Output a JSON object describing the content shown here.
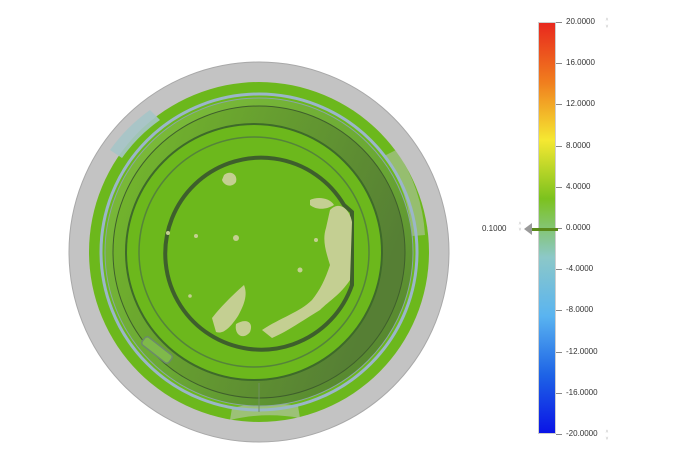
{
  "colorbar": {
    "labels": [
      "20.0000",
      "16.0000",
      "12.0000",
      "8.0000",
      "4.0000",
      "0.0000",
      "-4.0000",
      "-8.0000",
      "-12.0000",
      "-16.0000",
      "-20.0000"
    ],
    "max_spin_up": "˄",
    "max_spin_down": "˅",
    "min_spin_up": "˄",
    "min_spin_down": "˅",
    "colors": {
      "top": "#e8281e",
      "orange": "#f07d1e",
      "yellow": "#f5e832",
      "green": "#7cc21e",
      "teal": "#8cc8c8",
      "lightblue": "#5ab4f0",
      "blue": "#1e64e6",
      "bottom": "#0a14e6"
    }
  },
  "tolerance": {
    "value": "0.1000",
    "spin_up": "˄",
    "spin_down": "˅"
  },
  "model": {
    "colors": {
      "outer_disk": "#c4c4c4",
      "green": "#6cb81c",
      "dark_green": "#4e7d2e",
      "deviation_patch": "#c4cf92",
      "blue_rim": "#9bb6c9"
    }
  }
}
